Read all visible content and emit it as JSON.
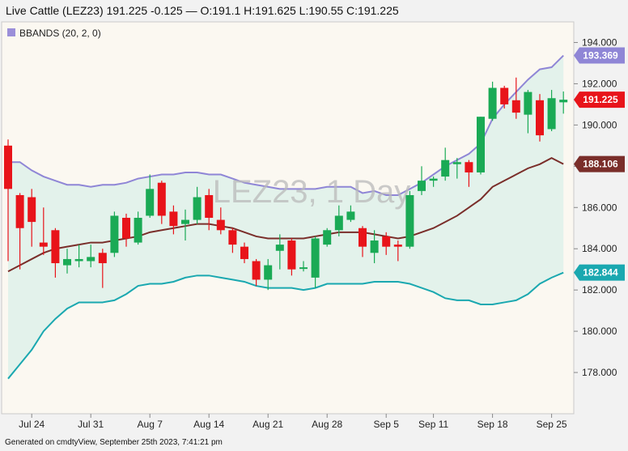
{
  "header": {
    "title": "Live Cattle (LEZ23) 191.225 -0.125 — O:191.1 H:191.625 L:190.55 C:191.225"
  },
  "footer": {
    "text": "Generated on cmdtyView, September 25th 2023, 7:41:21 pm"
  },
  "legend": {
    "label": "BBANDS (20, 2, 0)",
    "color": "#9b8fd9"
  },
  "watermark": "LEZ23, 1 Day",
  "colors": {
    "up": "#1aaa55",
    "down": "#e8141a",
    "upper_band": "#8f86d6",
    "middle_band": "#7a2e2a",
    "lower_band": "#1aa8b0",
    "band_fill": "#d8efe8",
    "plot_bg": "#fbf8f1"
  },
  "chart_data": {
    "type": "candlestick",
    "title": "Live Cattle (LEZ23)",
    "ylim": [
      176.0,
      195.0
    ],
    "y_ticks": [
      "178.000",
      "180.000",
      "182.000",
      "184.000",
      "186.000",
      "188.000",
      "190.000",
      "192.000",
      "194.000"
    ],
    "y_tick_values": [
      178,
      180,
      182,
      184,
      186,
      188,
      190,
      192,
      194
    ],
    "x_tick_labels": [
      "Jul 24",
      "Jul 31",
      "Aug 7",
      "Aug 14",
      "Aug 21",
      "Aug 28",
      "Sep 5",
      "Sep 11",
      "Sep 18",
      "Sep 25"
    ],
    "x_tick_index": [
      2,
      7,
      12,
      17,
      22,
      27,
      32,
      36,
      41,
      46
    ],
    "candles": [
      {
        "o": 189.0,
        "h": 189.3,
        "l": 183.4,
        "c": 186.9
      },
      {
        "o": 186.6,
        "h": 186.7,
        "l": 183.0,
        "c": 185.0
      },
      {
        "o": 186.5,
        "h": 186.9,
        "l": 184.1,
        "c": 185.3
      },
      {
        "o": 184.3,
        "h": 186.0,
        "l": 183.7,
        "c": 184.1
      },
      {
        "o": 184.9,
        "h": 185.0,
        "l": 182.6,
        "c": 183.3
      },
      {
        "o": 183.2,
        "h": 184.0,
        "l": 182.8,
        "c": 183.5
      },
      {
        "o": 183.4,
        "h": 184.2,
        "l": 183.1,
        "c": 183.5
      },
      {
        "o": 183.4,
        "h": 184.2,
        "l": 183.1,
        "c": 183.6
      },
      {
        "o": 183.8,
        "h": 184.0,
        "l": 182.1,
        "c": 183.3
      },
      {
        "o": 183.8,
        "h": 185.8,
        "l": 183.6,
        "c": 185.6
      },
      {
        "o": 185.5,
        "h": 185.7,
        "l": 184.1,
        "c": 184.5
      },
      {
        "o": 184.3,
        "h": 185.8,
        "l": 184.2,
        "c": 185.5
      },
      {
        "o": 185.6,
        "h": 187.6,
        "l": 185.5,
        "c": 186.9
      },
      {
        "o": 187.2,
        "h": 187.3,
        "l": 185.2,
        "c": 185.6
      },
      {
        "o": 185.8,
        "h": 186.1,
        "l": 184.7,
        "c": 185.1
      },
      {
        "o": 185.2,
        "h": 185.9,
        "l": 184.4,
        "c": 185.4
      },
      {
        "o": 185.4,
        "h": 187.0,
        "l": 185.2,
        "c": 186.5
      },
      {
        "o": 186.6,
        "h": 186.9,
        "l": 184.9,
        "c": 185.5
      },
      {
        "o": 185.4,
        "h": 186.0,
        "l": 184.7,
        "c": 184.9
      },
      {
        "o": 184.9,
        "h": 185.0,
        "l": 183.8,
        "c": 184.2
      },
      {
        "o": 184.1,
        "h": 184.3,
        "l": 183.3,
        "c": 183.5
      },
      {
        "o": 183.4,
        "h": 183.5,
        "l": 182.2,
        "c": 182.5
      },
      {
        "o": 182.5,
        "h": 183.5,
        "l": 182.0,
        "c": 183.2
      },
      {
        "o": 183.9,
        "h": 184.7,
        "l": 183.0,
        "c": 184.2
      },
      {
        "o": 184.4,
        "h": 184.5,
        "l": 182.7,
        "c": 183.0
      },
      {
        "o": 183.1,
        "h": 183.4,
        "l": 182.9,
        "c": 183.1
      },
      {
        "o": 182.6,
        "h": 184.6,
        "l": 182.1,
        "c": 184.5
      },
      {
        "o": 184.2,
        "h": 185.0,
        "l": 184.1,
        "c": 184.9
      },
      {
        "o": 184.9,
        "h": 186.1,
        "l": 184.6,
        "c": 185.6
      },
      {
        "o": 185.4,
        "h": 186.1,
        "l": 185.3,
        "c": 185.8
      },
      {
        "o": 185.0,
        "h": 185.1,
        "l": 183.6,
        "c": 184.1
      },
      {
        "o": 183.8,
        "h": 184.9,
        "l": 183.3,
        "c": 184.4
      },
      {
        "o": 184.6,
        "h": 184.8,
        "l": 183.7,
        "c": 184.1
      },
      {
        "o": 184.2,
        "h": 184.4,
        "l": 183.4,
        "c": 184.1
      },
      {
        "o": 184.1,
        "h": 186.8,
        "l": 184.0,
        "c": 186.6
      },
      {
        "o": 186.8,
        "h": 188.0,
        "l": 186.6,
        "c": 187.3
      },
      {
        "o": 187.3,
        "h": 187.5,
        "l": 187.0,
        "c": 187.4
      },
      {
        "o": 187.5,
        "h": 188.9,
        "l": 187.3,
        "c": 188.3
      },
      {
        "o": 188.1,
        "h": 188.4,
        "l": 187.4,
        "c": 188.2
      },
      {
        "o": 188.2,
        "h": 188.3,
        "l": 187.0,
        "c": 187.7
      },
      {
        "o": 187.7,
        "h": 190.4,
        "l": 187.6,
        "c": 190.4
      },
      {
        "o": 190.3,
        "h": 192.1,
        "l": 190.2,
        "c": 191.8
      },
      {
        "o": 191.8,
        "h": 191.9,
        "l": 190.8,
        "c": 191.0
      },
      {
        "o": 191.2,
        "h": 192.3,
        "l": 190.3,
        "c": 190.6
      },
      {
        "o": 190.5,
        "h": 191.7,
        "l": 189.6,
        "c": 191.6
      },
      {
        "o": 191.2,
        "h": 191.5,
        "l": 189.2,
        "c": 189.5
      },
      {
        "o": 189.8,
        "h": 191.7,
        "l": 189.7,
        "c": 191.3
      },
      {
        "o": 191.1,
        "h": 191.625,
        "l": 190.55,
        "c": 191.225
      }
    ],
    "bbands": {
      "upper": [
        188.2,
        188.2,
        187.8,
        187.5,
        187.3,
        187.1,
        187.1,
        187.0,
        187.1,
        187.1,
        187.2,
        187.4,
        187.5,
        187.6,
        187.6,
        187.7,
        187.7,
        187.6,
        187.6,
        187.4,
        187.2,
        187.1,
        187.0,
        186.9,
        186.9,
        186.9,
        186.9,
        187.0,
        187.0,
        187.0,
        186.7,
        186.8,
        186.6,
        186.6,
        186.9,
        187.2,
        187.6,
        188.0,
        188.3,
        188.6,
        189.1,
        190.3,
        191.0,
        191.6,
        192.2,
        192.7,
        192.8,
        193.369
      ],
      "middle": [
        182.9,
        183.2,
        183.5,
        183.8,
        184.0,
        184.1,
        184.2,
        184.3,
        184.3,
        184.4,
        184.5,
        184.6,
        184.8,
        184.9,
        185.0,
        185.1,
        185.2,
        185.2,
        185.1,
        185.0,
        184.8,
        184.6,
        184.5,
        184.5,
        184.5,
        184.5,
        184.6,
        184.7,
        184.8,
        184.8,
        184.8,
        184.7,
        184.6,
        184.5,
        184.6,
        184.8,
        185.0,
        185.3,
        185.6,
        186.0,
        186.4,
        187.0,
        187.3,
        187.6,
        187.9,
        188.1,
        188.4,
        188.106
      ],
      "lower": [
        177.7,
        178.4,
        179.1,
        180.0,
        180.6,
        181.1,
        181.4,
        181.4,
        181.4,
        181.5,
        181.8,
        182.2,
        182.3,
        182.3,
        182.4,
        182.6,
        182.7,
        182.7,
        182.6,
        182.5,
        182.4,
        182.2,
        182.1,
        182.1,
        182.1,
        182.0,
        182.1,
        182.3,
        182.3,
        182.3,
        182.3,
        182.4,
        182.4,
        182.4,
        182.3,
        182.1,
        181.9,
        181.6,
        181.5,
        181.5,
        181.3,
        181.3,
        181.4,
        181.5,
        181.8,
        182.3,
        182.6,
        182.844
      ]
    },
    "value_tags": [
      {
        "label": "193.369",
        "value": 193.369,
        "color": "#8f86d6"
      },
      {
        "label": "191.225",
        "value": 191.225,
        "color": "#e8141a"
      },
      {
        "label": "188.106",
        "value": 188.106,
        "color": "#7a2e2a"
      },
      {
        "label": "182.844",
        "value": 182.844,
        "color": "#1aa8b0"
      }
    ]
  }
}
